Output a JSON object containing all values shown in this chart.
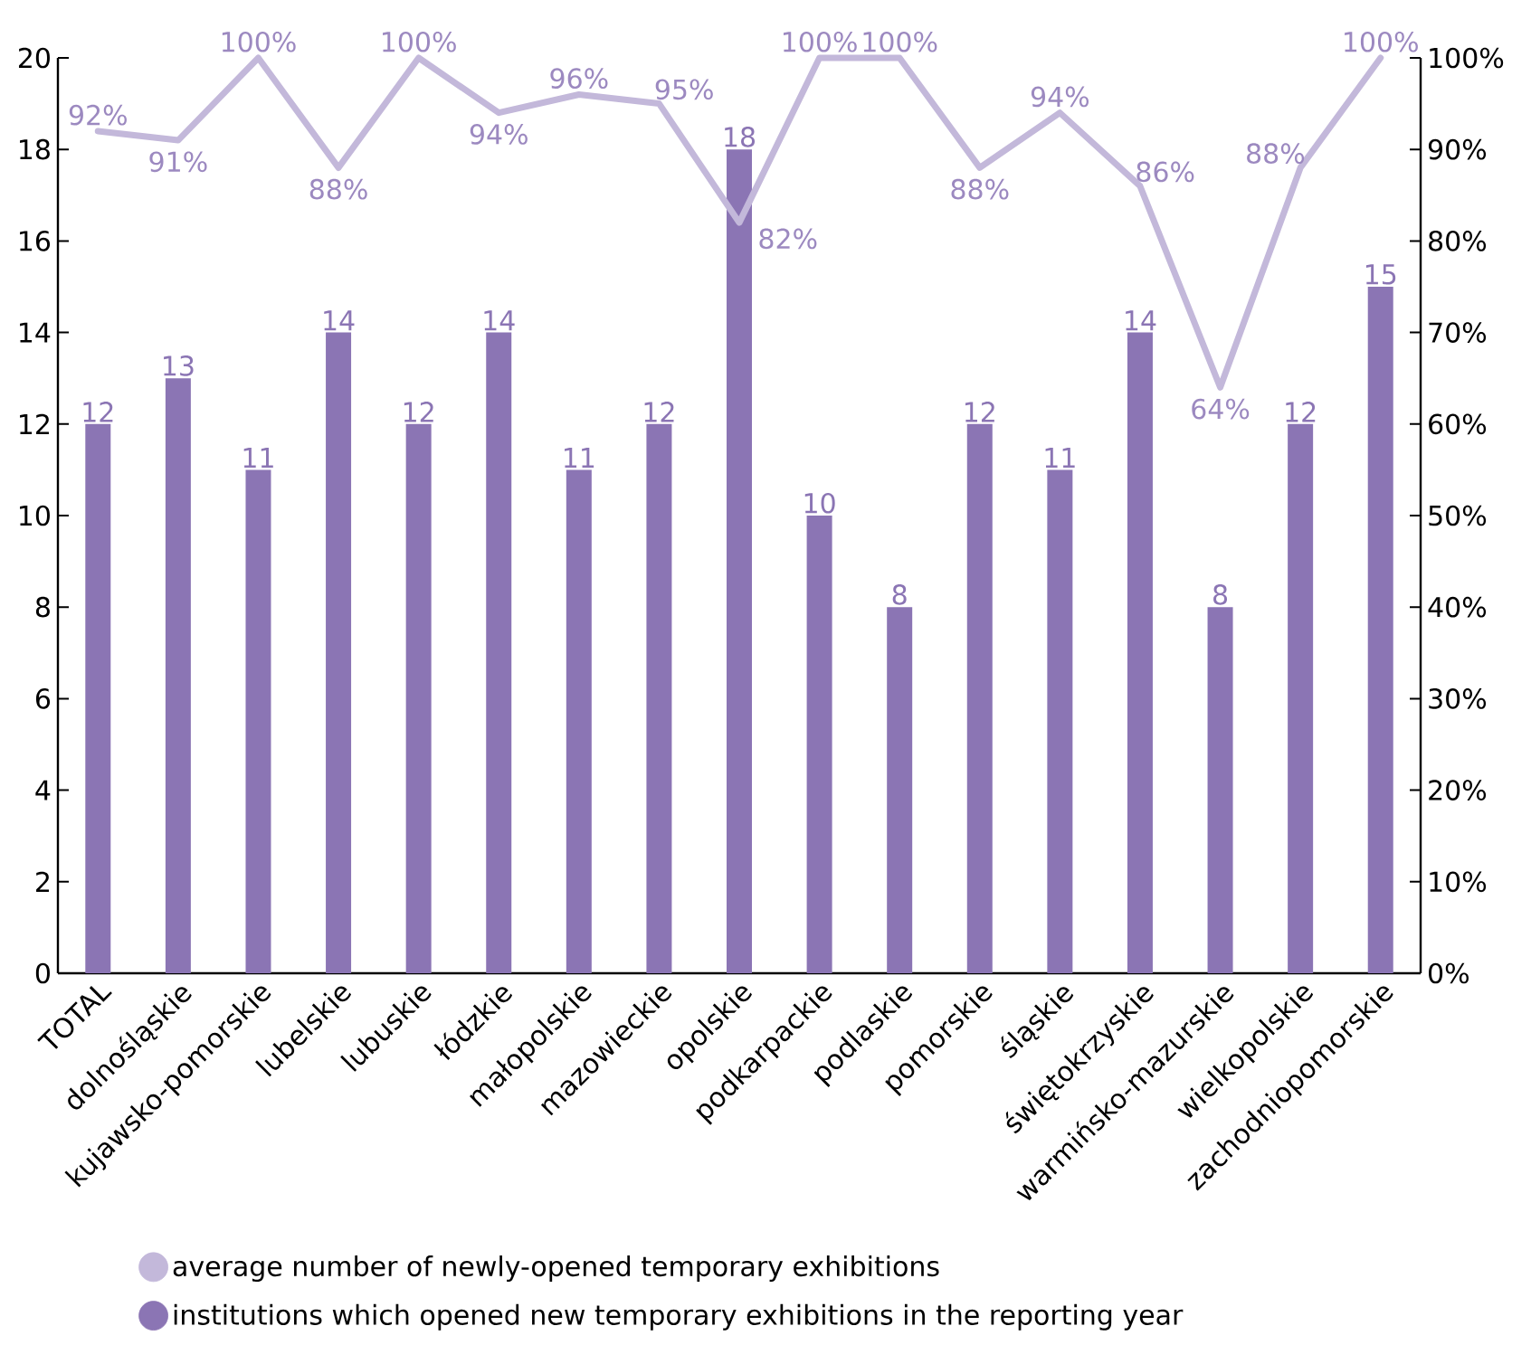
{
  "chart_data": {
    "type": "bar",
    "categories": [
      "TOTAL",
      "dolnośląskie",
      "kujawsko-pomorskie",
      "lubelskie",
      "lubuskie",
      "łódzkie",
      "małopolskie",
      "mazowieckie",
      "opolskie",
      "podkarpackie",
      "podlaskie",
      "pomorskie",
      "śląskie",
      "świętokrzyskie",
      "warmińsko-mazurskie",
      "wielkopolskie",
      "zachodniopomorskie"
    ],
    "series": [
      {
        "name": "average number of newly-opened temporary exhibitions",
        "type": "line",
        "axis": "y2",
        "color": "#c3b8da",
        "values": [
          92,
          91,
          100,
          88,
          100,
          94,
          96,
          95,
          82,
          100,
          100,
          88,
          94,
          86,
          64,
          88,
          100
        ],
        "value_labels": [
          "92%",
          "91%",
          "100%",
          "88%",
          "100%",
          "94%",
          "96%",
          "95%",
          "82%",
          "100%",
          "100%",
          "88%",
          "94%",
          "86%",
          "64%",
          "88%",
          "100%"
        ]
      },
      {
        "name": "institutions which opened new temporary exhibitions in the reporting year",
        "color": "#8b75b4",
        "values": [
          12,
          13,
          11,
          14,
          12,
          14,
          11,
          12,
          18,
          10,
          8,
          12,
          11,
          14,
          8,
          12,
          15
        ]
      }
    ],
    "ylim": [
      0,
      20
    ],
    "yticks": [
      0,
      2,
      4,
      6,
      8,
      10,
      12,
      14,
      16,
      18,
      20
    ],
    "y2lim": [
      0,
      100
    ],
    "y2ticks": [
      {
        "value": 0,
        "label": "0%"
      },
      {
        "value": 10,
        "label": "10%"
      },
      {
        "value": 20,
        "label": "20%"
      },
      {
        "value": 30,
        "label": "30%"
      },
      {
        "value": 40,
        "label": "40%"
      },
      {
        "value": 50,
        "label": "50%"
      },
      {
        "value": 60,
        "label": "60%"
      },
      {
        "value": 70,
        "label": "70%"
      },
      {
        "value": 80,
        "label": "80%"
      },
      {
        "value": 90,
        "label": "90%"
      },
      {
        "value": 100,
        "label": "100%"
      }
    ],
    "data_labels": true,
    "marker": "none",
    "legend": "bottom"
  }
}
